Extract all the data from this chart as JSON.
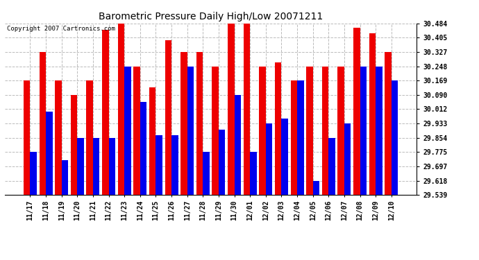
{
  "title": "Barometric Pressure Daily High/Low 20071211",
  "copyright": "Copyright 2007 Cartronics.com",
  "dates": [
    "11/17",
    "11/18",
    "11/19",
    "11/20",
    "11/21",
    "11/22",
    "11/23",
    "11/24",
    "11/25",
    "11/26",
    "11/27",
    "11/28",
    "11/29",
    "11/30",
    "12/01",
    "12/02",
    "12/03",
    "12/04",
    "12/05",
    "12/06",
    "12/07",
    "12/08",
    "12/09",
    "12/10"
  ],
  "highs": [
    30.169,
    30.327,
    30.169,
    30.09,
    30.169,
    30.45,
    30.484,
    30.248,
    30.13,
    30.39,
    30.327,
    30.327,
    30.248,
    30.484,
    30.484,
    30.248,
    30.27,
    30.169,
    30.248,
    30.248,
    30.248,
    30.46,
    30.43,
    30.327
  ],
  "lows": [
    29.775,
    29.997,
    29.73,
    29.854,
    29.854,
    29.854,
    30.248,
    30.05,
    29.87,
    29.87,
    30.248,
    29.775,
    29.9,
    30.09,
    29.775,
    29.933,
    29.96,
    30.169,
    29.618,
    29.854,
    29.933,
    30.248,
    30.248,
    30.169
  ],
  "ylim": [
    29.539,
    30.484
  ],
  "yticks": [
    29.539,
    29.618,
    29.697,
    29.775,
    29.854,
    29.933,
    30.012,
    30.09,
    30.169,
    30.248,
    30.327,
    30.405,
    30.484
  ],
  "bar_width": 0.42,
  "high_color": "#ee0000",
  "low_color": "#0000ee",
  "bg_color": "#ffffff",
  "plot_bg_color": "#ffffff",
  "grid_color": "#bbbbbb",
  "title_fontsize": 10,
  "tick_fontsize": 7,
  "copyright_fontsize": 6.5
}
